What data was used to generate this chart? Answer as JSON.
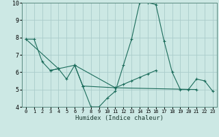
{
  "xlabel": "Humidex (Indice chaleur)",
  "xlim": [
    -0.5,
    23.5
  ],
  "ylim": [
    4,
    10
  ],
  "yticks": [
    4,
    5,
    6,
    7,
    8,
    9,
    10
  ],
  "xticks": [
    0,
    1,
    2,
    3,
    4,
    5,
    6,
    7,
    8,
    9,
    10,
    11,
    12,
    13,
    14,
    15,
    16,
    17,
    18,
    19,
    20,
    21,
    22,
    23
  ],
  "bg_color": "#cce8e4",
  "grid_color": "#aaccca",
  "line_color": "#1a6b5a",
  "series": [
    [
      7.9,
      7.9,
      6.6,
      6.1,
      6.2,
      5.6,
      6.4,
      5.2,
      4.0,
      4.0,
      4.5,
      4.9,
      6.4,
      7.9,
      10.0,
      10.0,
      9.9,
      7.8,
      6.0,
      5.0,
      5.0,
      5.6,
      5.5,
      4.9
    ],
    [
      null,
      null,
      null,
      6.1,
      6.2,
      null,
      null,
      null,
      null,
      null,
      null,
      null,
      null,
      null,
      null,
      null,
      null,
      null,
      null,
      null,
      null,
      null,
      null,
      null
    ],
    [
      7.9,
      null,
      null,
      null,
      6.2,
      null,
      6.4,
      null,
      null,
      null,
      null,
      5.1,
      null,
      null,
      null,
      null,
      null,
      null,
      null,
      null,
      null,
      5.0,
      null,
      null
    ],
    [
      null,
      null,
      null,
      null,
      null,
      null,
      6.4,
      5.2,
      null,
      null,
      null,
      5.1,
      5.3,
      5.5,
      5.7,
      5.9,
      6.1,
      null,
      null,
      null,
      null,
      null,
      null,
      null
    ]
  ]
}
